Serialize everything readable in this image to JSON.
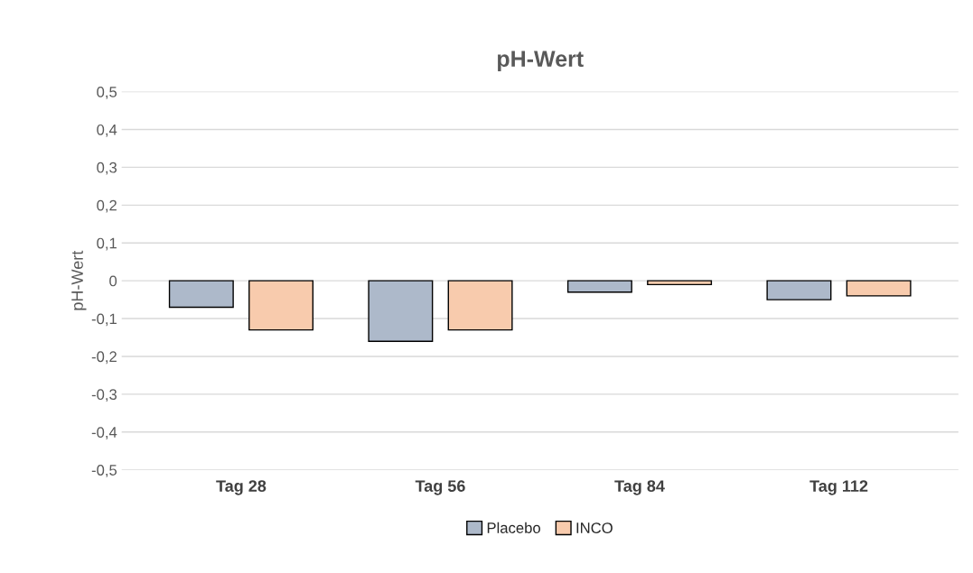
{
  "chart_data": {
    "type": "bar",
    "title": "pH-Wert",
    "ylabel": "pH-Wert",
    "categories": [
      "Tag 28",
      "Tag 56",
      "Tag 84",
      "Tag 112"
    ],
    "series": [
      {
        "name": "Placebo",
        "color": "#adb9ca",
        "values": [
          -0.07,
          -0.16,
          -0.03,
          -0.05
        ]
      },
      {
        "name": "INCO",
        "color": "#f8cbad",
        "values": [
          -0.13,
          -0.13,
          -0.01,
          -0.04
        ]
      }
    ],
    "ylim": [
      -0.5,
      0.5
    ],
    "yticks": [
      {
        "value": -0.5,
        "label": "-0,5"
      },
      {
        "value": -0.4,
        "label": "-0,4"
      },
      {
        "value": -0.3,
        "label": "-0,3"
      },
      {
        "value": -0.2,
        "label": "-0,2"
      },
      {
        "value": -0.1,
        "label": "-0,1"
      },
      0,
      {
        "value": 0.1,
        "label": "0,1"
      },
      {
        "value": 0.2,
        "label": "0,2"
      },
      {
        "value": 0.3,
        "label": "0,3"
      },
      {
        "value": 0.4,
        "label": "0,4"
      },
      {
        "value": 0.5,
        "label": "0,5"
      }
    ],
    "grid": "y",
    "legend": "bottom"
  }
}
